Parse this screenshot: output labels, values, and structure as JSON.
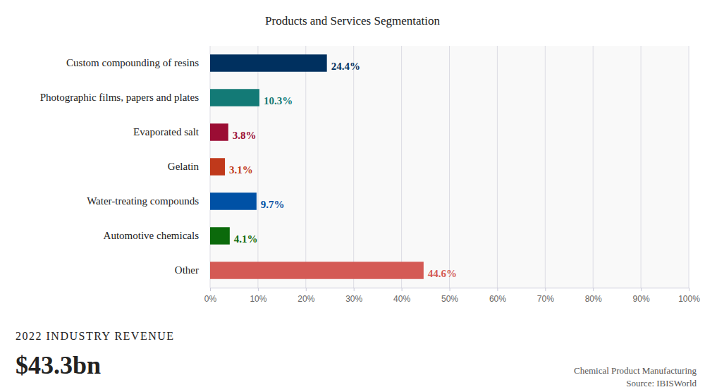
{
  "chart_data": {
    "type": "bar",
    "orientation": "horizontal",
    "title": "Products and Services Segmentation",
    "categories": [
      "Custom compounding of resins",
      "Photographic films, papers and plates",
      "Evaporated salt",
      "Gelatin",
      "Water-treating compounds",
      "Automotive chemicals",
      "Other"
    ],
    "values": [
      24.4,
      10.3,
      3.8,
      3.1,
      9.7,
      4.1,
      44.6
    ],
    "value_labels": [
      "24.4%",
      "10.3%",
      "3.8%",
      "3.1%",
      "9.7%",
      "4.1%",
      "44.6%"
    ],
    "colors": [
      "#00305f",
      "#137a76",
      "#9b0d34",
      "#c0391b",
      "#0051a5",
      "#0b6a0b",
      "#d45a55"
    ],
    "xlim": [
      0,
      100
    ],
    "xticks": [
      {
        "value": 0,
        "label": "0%"
      },
      {
        "value": 10,
        "label": "10%"
      },
      {
        "value": 20,
        "label": "20%"
      },
      {
        "value": 30,
        "label": "30%"
      },
      {
        "value": 40,
        "label": "40%"
      },
      {
        "value": 50,
        "label": "50%"
      },
      {
        "value": 60,
        "label": "60%"
      },
      {
        "value": 70,
        "label": "70%"
      },
      {
        "value": 80,
        "label": "80%"
      },
      {
        "value": 90,
        "label": "90%"
      },
      {
        "value": 100,
        "label": "100%"
      }
    ],
    "grid": true,
    "data_labels": true,
    "annotations": [
      "2022 INDUSTRY REVENUE",
      "$43.3bn",
      "Chemical Product Manufacturing",
      "Source: IBISWorld"
    ]
  }
}
